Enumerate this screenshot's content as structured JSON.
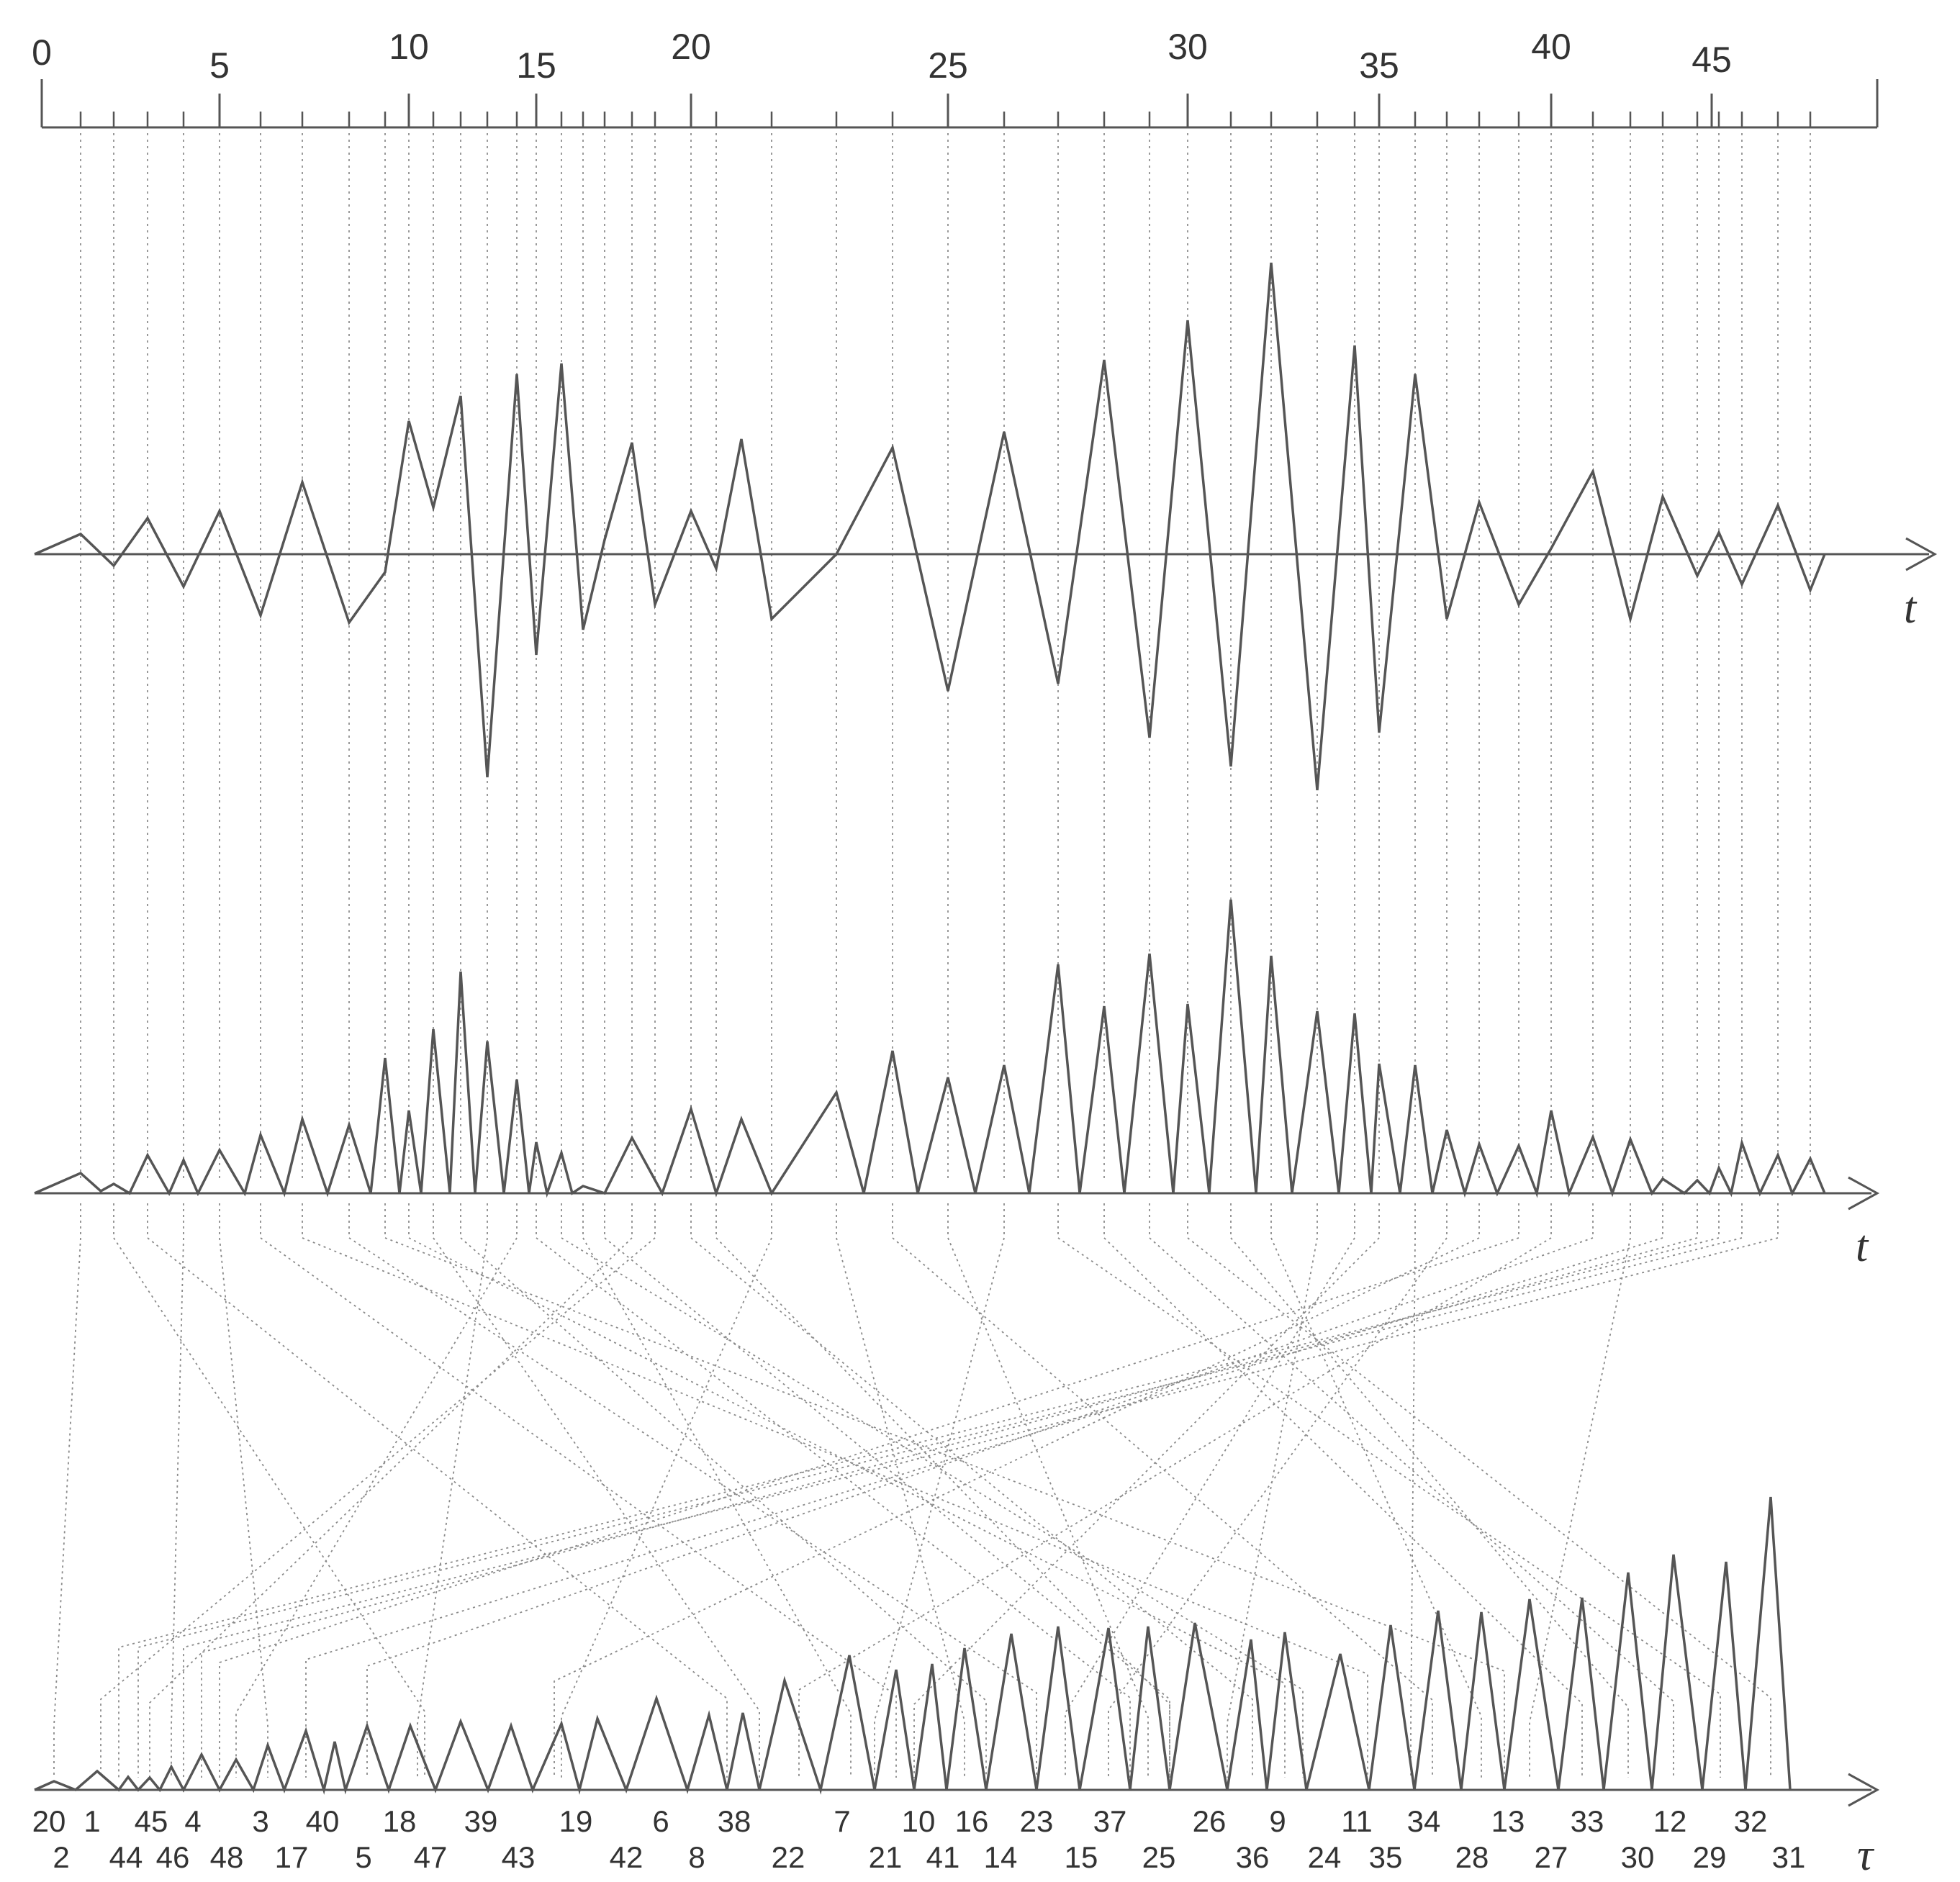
{
  "figure": {
    "top_axis": {
      "tick_labels": [
        "0",
        "5",
        "10",
        "15",
        "20",
        "25",
        "30",
        "35",
        "40",
        "45"
      ],
      "tick_values": [
        0,
        5,
        10,
        15,
        20,
        25,
        30,
        35,
        40,
        45
      ]
    },
    "signal_axis_label": "t",
    "abs_axis_label": "t",
    "tau_axis_label": "τ",
    "tau_labels_row1": [
      "20",
      "1",
      "45",
      "4",
      "3",
      "40",
      "18",
      "39",
      "19",
      "6",
      "38",
      "7",
      "10",
      "16",
      "23",
      "37",
      "26",
      "9",
      "11",
      "34",
      "13",
      "33",
      "12",
      "32"
    ],
    "tau_labels_row2": [
      "2",
      "44",
      "46",
      "48",
      "17",
      "5",
      "47",
      "43",
      "42",
      "8",
      "22",
      "21",
      "41",
      "14",
      "15",
      "25",
      "36",
      "24",
      "35",
      "28",
      "27",
      "30",
      "29",
      "31"
    ]
  }
}
